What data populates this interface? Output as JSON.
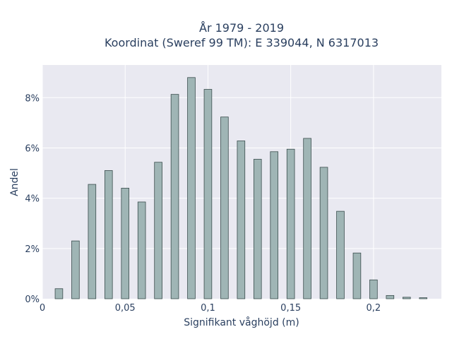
{
  "chart_data": {
    "type": "bar",
    "title_lines": [
      "År 1979 - 2019",
      "Koordinat (Sweref 99 TM): E 339044, N 6317013"
    ],
    "xlabel": "Signifikant våghöjd (m)",
    "ylabel": "Andel",
    "x": [
      0.01,
      0.02,
      0.03,
      0.04,
      0.05,
      0.06,
      0.07,
      0.08,
      0.09,
      0.1,
      0.11,
      0.12,
      0.13,
      0.14,
      0.15,
      0.16,
      0.17,
      0.18,
      0.19,
      0.2,
      0.21,
      0.22,
      0.23
    ],
    "values": [
      0.4,
      2.3,
      4.55,
      5.1,
      4.4,
      3.85,
      5.43,
      8.13,
      8.8,
      8.33,
      7.23,
      6.28,
      5.55,
      5.85,
      5.95,
      6.38,
      5.23,
      3.48,
      1.82,
      0.75,
      0.13,
      0.06,
      0.04
    ],
    "xlim": [
      0,
      0.241
    ],
    "ylim": [
      0,
      9.3
    ],
    "x_ticks": [
      0,
      0.05,
      0.1,
      0.15,
      0.2
    ],
    "x_tick_labels": [
      "0",
      "0,05",
      "0,1",
      "0,15",
      "0,2"
    ],
    "y_ticks": [
      0,
      2,
      4,
      6,
      8
    ],
    "y_tick_labels": [
      "0%",
      "2%",
      "4%",
      "6%",
      "8%"
    ],
    "grid": true,
    "bar_color": "#9fb5b5",
    "bar_edge_color": "#3a4d4d",
    "plot_bg": "#e9e9f1"
  }
}
